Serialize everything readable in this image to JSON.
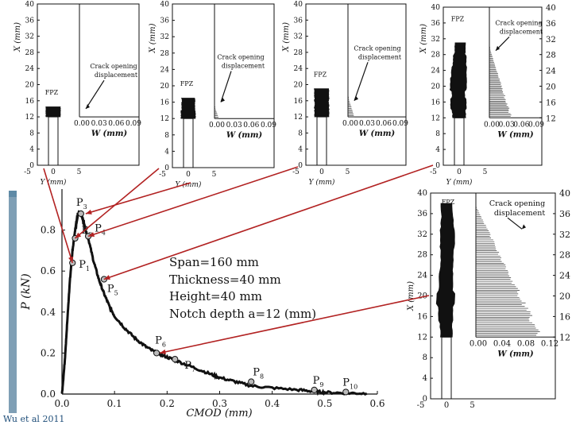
{
  "citation": "Wu et al 2011",
  "specimen": {
    "span": "Span=160 mm",
    "thickness": "Thickness=40 mm",
    "height": "Height=40 mm",
    "notch": "Notch depth a=12 (mm)"
  },
  "chart_data": [
    {
      "type": "line",
      "id": "load-cmod",
      "xlabel": "CMOD (mm)",
      "ylabel": "P (kN)",
      "xlim": [
        0,
        0.6
      ],
      "ylim": [
        0,
        1.0
      ],
      "xticks": [
        "0.0",
        "0.1",
        "0.2",
        "0.3",
        "0.4",
        "0.5",
        "0.6"
      ],
      "yticks": [
        "0.0",
        "0.2",
        "0.4",
        "0.6",
        "0.8"
      ],
      "grid": false,
      "series": [
        {
          "x": [
            0,
            0.005,
            0.01,
            0.015,
            0.02,
            0.025,
            0.03,
            0.035,
            0.04,
            0.045,
            0.05,
            0.06,
            0.07,
            0.08,
            0.09,
            0.1,
            0.12,
            0.14,
            0.16,
            0.18,
            0.2,
            0.22,
            0.25,
            0.28,
            0.3,
            0.33,
            0.36,
            0.4,
            0.45,
            0.48,
            0.5,
            0.54,
            0.58
          ],
          "y": [
            0.0,
            0.15,
            0.35,
            0.55,
            0.7,
            0.8,
            0.87,
            0.89,
            0.85,
            0.8,
            0.76,
            0.65,
            0.56,
            0.49,
            0.43,
            0.38,
            0.32,
            0.27,
            0.23,
            0.2,
            0.18,
            0.16,
            0.13,
            0.1,
            0.08,
            0.06,
            0.04,
            0.03,
            0.02,
            0.013,
            0.008,
            0.005,
            0.003
          ]
        }
      ],
      "points": [
        {
          "label": "P",
          "sub": "1",
          "x": 0.02,
          "y": 0.64
        },
        {
          "label": "P",
          "sub": "2",
          "x": 0.025,
          "y": 0.76
        },
        {
          "label": "P",
          "sub": "3",
          "x": 0.036,
          "y": 0.88
        },
        {
          "label": "P",
          "sub": "4",
          "x": 0.05,
          "y": 0.77
        },
        {
          "label": "P",
          "sub": "5",
          "x": 0.08,
          "y": 0.56
        },
        {
          "label": "P",
          "sub": "6",
          "x": 0.18,
          "y": 0.2
        },
        {
          "label": "P",
          "sub": "7",
          "x": 0.215,
          "y": 0.17
        },
        {
          "label": "P",
          "sub": "8",
          "x": 0.36,
          "y": 0.06
        },
        {
          "label": "P",
          "sub": "9",
          "x": 0.48,
          "y": 0.02
        },
        {
          "label": "P",
          "sub": "10",
          "x": 0.54,
          "y": 0.01
        }
      ]
    },
    {
      "type": "area",
      "id": "fpz-panel-1",
      "ylabel": "X (mm)",
      "xlabel": "W (mm)",
      "yticks": [
        "0",
        "4",
        "8",
        "12",
        "16",
        "20",
        "24",
        "28",
        "32",
        "36",
        "40"
      ],
      "xticks_bottom": [
        "-5",
        "0",
        "5"
      ],
      "xlabel_bottom": "Y (mm)",
      "xticks_w": [
        "0.00",
        "0.03",
        "0.06",
        "0.09"
      ],
      "fpz_label": "FPZ",
      "annotation": "Crack opening displacement",
      "fpz_top_mm": 14.5,
      "cod_max_mm": 0.0,
      "cod_top_mm": 12
    },
    {
      "type": "area",
      "id": "fpz-panel-2",
      "ylabel": "X (mm)",
      "xlabel": "W (mm)",
      "yticks": [
        "0",
        "4",
        "8",
        "12",
        "16",
        "20",
        "24",
        "28",
        "32",
        "36",
        "40"
      ],
      "xticks_bottom": [
        "-5",
        "0",
        "5"
      ],
      "xlabel_bottom": "Y (mm)",
      "xticks_w": [
        "0.00",
        "0.03",
        "0.06",
        "0.09"
      ],
      "fpz_label": "FPZ",
      "annotation": "Crack opening displacement",
      "fpz_top_mm": 17,
      "cod_max_mm": 0.008,
      "cod_top_mm": 15
    },
    {
      "type": "area",
      "id": "fpz-panel-3",
      "ylabel": "X (mm)",
      "xlabel": "W (mm)",
      "yticks": [
        "0",
        "4",
        "8",
        "12",
        "16",
        "20",
        "24",
        "28",
        "32",
        "36",
        "40"
      ],
      "xticks_bottom": [
        "-5",
        "0",
        "5"
      ],
      "xlabel_bottom": "Y (mm)",
      "xticks_w": [
        "0.00",
        "0.03",
        "0.06",
        "0.09"
      ],
      "fpz_label": "FPZ",
      "annotation": "Crack opening displacement",
      "fpz_top_mm": 19,
      "cod_max_mm": 0.012,
      "cod_top_mm": 17
    },
    {
      "type": "area",
      "id": "fpz-panel-4",
      "ylabel": "X (mm)",
      "xlabel": "W (mm)",
      "yticks": [
        "0",
        "4",
        "8",
        "12",
        "16",
        "20",
        "24",
        "28",
        "32",
        "36",
        "40"
      ],
      "yticks_right": [
        "12",
        "16",
        "20",
        "24",
        "28",
        "32",
        "36",
        "40"
      ],
      "xticks_bottom": [
        "-5",
        "0",
        "5"
      ],
      "xlabel_bottom": "Y (mm)",
      "xticks_w": [
        "0.00",
        "0.03",
        "0.06",
        "0.09"
      ],
      "fpz_label": "FPZ",
      "annotation": "Crack opening displacement",
      "fpz_top_mm": 31,
      "cod_max_mm": 0.045,
      "cod_top_mm": 30
    },
    {
      "type": "area",
      "id": "fpz-panel-5",
      "ylabel": "X (mm)",
      "xlabel": "W (mm)",
      "yticks": [
        "0",
        "4",
        "8",
        "12",
        "16",
        "20",
        "24",
        "28",
        "32",
        "36",
        "40"
      ],
      "yticks_right": [
        "12",
        "16",
        "20",
        "24",
        "28",
        "32",
        "36",
        "40"
      ],
      "xticks_bottom": [
        "-5",
        "0",
        "5"
      ],
      "xticks_w": [
        "0.00",
        "0.04",
        "0.08",
        "0.12"
      ],
      "fpz_label": "FPZ",
      "annotation": "Crack opening displacement",
      "fpz_top_mm": 38,
      "cod_max_mm": 0.11,
      "cod_top_mm": 37.5
    }
  ]
}
